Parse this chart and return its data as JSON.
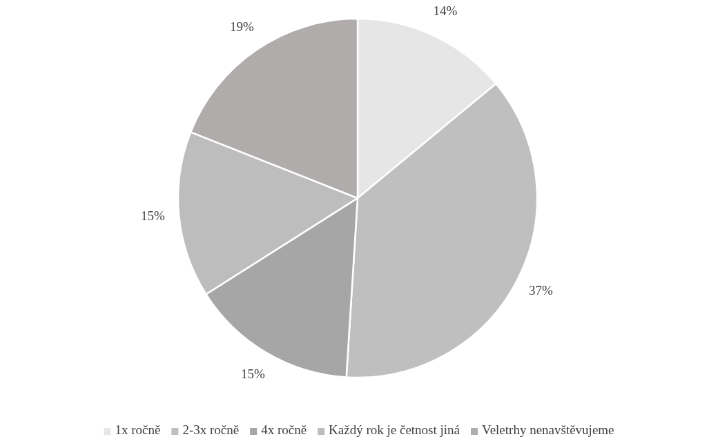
{
  "chart_data": {
    "type": "pie",
    "categories": [
      "1x ročně",
      "2-3x ročně",
      "4x ročně",
      "Každý rok je četnost jiná",
      "Veletrhy nenavštěvujeme"
    ],
    "values": [
      14,
      37,
      15,
      15,
      19
    ],
    "colors": [
      "#e6e6e6",
      "#bfbfbf",
      "#a6a6a6",
      "#bdbdbd",
      "#b0acac"
    ],
    "value_labels": [
      "14%",
      "37%",
      "15%",
      "15%",
      "19%"
    ],
    "legend": "bottom"
  }
}
